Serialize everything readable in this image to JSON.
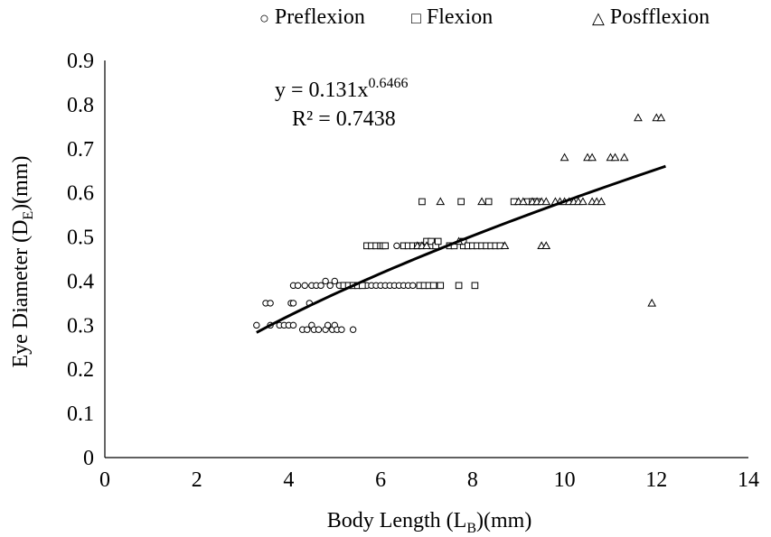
{
  "chart_data": {
    "type": "scatter",
    "xlabel": "Body Length (L_B)(mm)",
    "ylabel": "Eye Diameter (D_E)(mm)",
    "xlim": [
      0,
      14
    ],
    "ylim": [
      0,
      0.9
    ],
    "xticks": [
      0,
      2,
      4,
      6,
      8,
      10,
      12,
      14
    ],
    "yticks": [
      0,
      0.1,
      0.2,
      0.3,
      0.4,
      0.5,
      0.6,
      0.7,
      0.8,
      0.9
    ],
    "xtick_labels": [
      "0",
      "2",
      "4",
      "6",
      "8",
      "10",
      "12",
      "14"
    ],
    "ytick_labels": [
      "0",
      "0.1",
      "0.2",
      "0.3",
      "0.4",
      "0.5",
      "0.6",
      "0.7",
      "0.8",
      "0.9"
    ],
    "grid": false,
    "legend_position": "top",
    "series": [
      {
        "name": "Preflexion",
        "marker": "circle",
        "points": [
          [
            3.3,
            0.3
          ],
          [
            3.5,
            0.35
          ],
          [
            3.6,
            0.35
          ],
          [
            3.6,
            0.3
          ],
          [
            3.8,
            0.3
          ],
          [
            3.9,
            0.3
          ],
          [
            4.0,
            0.3
          ],
          [
            4.05,
            0.35
          ],
          [
            4.1,
            0.3
          ],
          [
            4.1,
            0.35
          ],
          [
            4.1,
            0.39
          ],
          [
            4.2,
            0.39
          ],
          [
            4.3,
            0.29
          ],
          [
            4.35,
            0.39
          ],
          [
            4.4,
            0.29
          ],
          [
            4.45,
            0.35
          ],
          [
            4.5,
            0.39
          ],
          [
            4.5,
            0.3
          ],
          [
            4.55,
            0.29
          ],
          [
            4.6,
            0.39
          ],
          [
            4.65,
            0.29
          ],
          [
            4.7,
            0.39
          ],
          [
            4.8,
            0.4
          ],
          [
            4.8,
            0.29
          ],
          [
            4.85,
            0.3
          ],
          [
            4.9,
            0.39
          ],
          [
            4.95,
            0.29
          ],
          [
            5.0,
            0.4
          ],
          [
            5.0,
            0.3
          ],
          [
            5.05,
            0.29
          ],
          [
            5.1,
            0.39
          ],
          [
            5.15,
            0.29
          ],
          [
            5.2,
            0.39
          ],
          [
            5.3,
            0.39
          ],
          [
            5.4,
            0.29
          ],
          [
            5.5,
            0.39
          ],
          [
            5.6,
            0.39
          ],
          [
            5.7,
            0.39
          ],
          [
            5.8,
            0.39
          ],
          [
            5.9,
            0.39
          ],
          [
            6.0,
            0.39
          ],
          [
            6.1,
            0.39
          ],
          [
            6.2,
            0.39
          ],
          [
            6.3,
            0.39
          ],
          [
            6.35,
            0.48
          ],
          [
            6.4,
            0.39
          ],
          [
            6.5,
            0.39
          ],
          [
            6.6,
            0.39
          ],
          [
            6.7,
            0.39
          ]
        ]
      },
      {
        "name": "Flexion",
        "marker": "square",
        "points": [
          [
            5.2,
            0.39
          ],
          [
            5.3,
            0.39
          ],
          [
            5.4,
            0.39
          ],
          [
            5.5,
            0.39
          ],
          [
            5.6,
            0.39
          ],
          [
            5.7,
            0.48
          ],
          [
            5.8,
            0.48
          ],
          [
            5.9,
            0.48
          ],
          [
            6.0,
            0.48
          ],
          [
            6.05,
            0.48
          ],
          [
            6.1,
            0.48
          ],
          [
            6.5,
            0.48
          ],
          [
            6.6,
            0.48
          ],
          [
            6.7,
            0.48
          ],
          [
            6.8,
            0.48
          ],
          [
            6.85,
            0.39
          ],
          [
            6.9,
            0.58
          ],
          [
            6.9,
            0.48
          ],
          [
            6.95,
            0.39
          ],
          [
            7.0,
            0.49
          ],
          [
            7.05,
            0.39
          ],
          [
            7.1,
            0.48
          ],
          [
            7.1,
            0.49
          ],
          [
            7.15,
            0.39
          ],
          [
            7.2,
            0.48
          ],
          [
            7.25,
            0.49
          ],
          [
            7.3,
            0.39
          ],
          [
            7.5,
            0.48
          ],
          [
            7.6,
            0.48
          ],
          [
            7.7,
            0.39
          ],
          [
            7.75,
            0.58
          ],
          [
            7.8,
            0.48
          ],
          [
            7.8,
            0.49
          ],
          [
            7.9,
            0.48
          ],
          [
            8.0,
            0.48
          ],
          [
            8.05,
            0.39
          ],
          [
            8.1,
            0.48
          ],
          [
            8.2,
            0.48
          ],
          [
            8.3,
            0.48
          ],
          [
            8.35,
            0.58
          ],
          [
            8.4,
            0.48
          ],
          [
            8.5,
            0.48
          ],
          [
            8.6,
            0.48
          ],
          [
            8.9,
            0.58
          ],
          [
            9.2,
            0.58
          ],
          [
            9.3,
            0.58
          ],
          [
            9.4,
            0.58
          ]
        ]
      },
      {
        "name": "Posfflexion",
        "marker": "triangle",
        "points": [
          [
            6.8,
            0.48
          ],
          [
            6.9,
            0.48
          ],
          [
            7.0,
            0.48
          ],
          [
            7.3,
            0.58
          ],
          [
            7.7,
            0.49
          ],
          [
            8.2,
            0.58
          ],
          [
            8.7,
            0.48
          ],
          [
            9.0,
            0.58
          ],
          [
            9.1,
            0.58
          ],
          [
            9.3,
            0.58
          ],
          [
            9.4,
            0.58
          ],
          [
            9.5,
            0.48
          ],
          [
            9.5,
            0.58
          ],
          [
            9.6,
            0.48
          ],
          [
            9.6,
            0.58
          ],
          [
            9.8,
            0.58
          ],
          [
            9.9,
            0.58
          ],
          [
            10.0,
            0.68
          ],
          [
            10.0,
            0.58
          ],
          [
            10.1,
            0.58
          ],
          [
            10.2,
            0.58
          ],
          [
            10.3,
            0.58
          ],
          [
            10.4,
            0.58
          ],
          [
            10.5,
            0.68
          ],
          [
            10.6,
            0.68
          ],
          [
            10.6,
            0.58
          ],
          [
            10.7,
            0.58
          ],
          [
            10.8,
            0.58
          ],
          [
            11.0,
            0.68
          ],
          [
            11.1,
            0.68
          ],
          [
            11.3,
            0.68
          ],
          [
            11.6,
            0.77
          ],
          [
            11.9,
            0.35
          ],
          [
            12.0,
            0.77
          ],
          [
            12.1,
            0.77
          ]
        ]
      }
    ],
    "trendline": {
      "type": "power",
      "a": 0.131,
      "b": 0.6466,
      "x_range": [
        3.3,
        12.2
      ]
    },
    "annotation": {
      "equation_prefix": "y = 0.131x",
      "equation_exponent": "0.6466",
      "r_squared": "R² = 0.7438"
    }
  }
}
